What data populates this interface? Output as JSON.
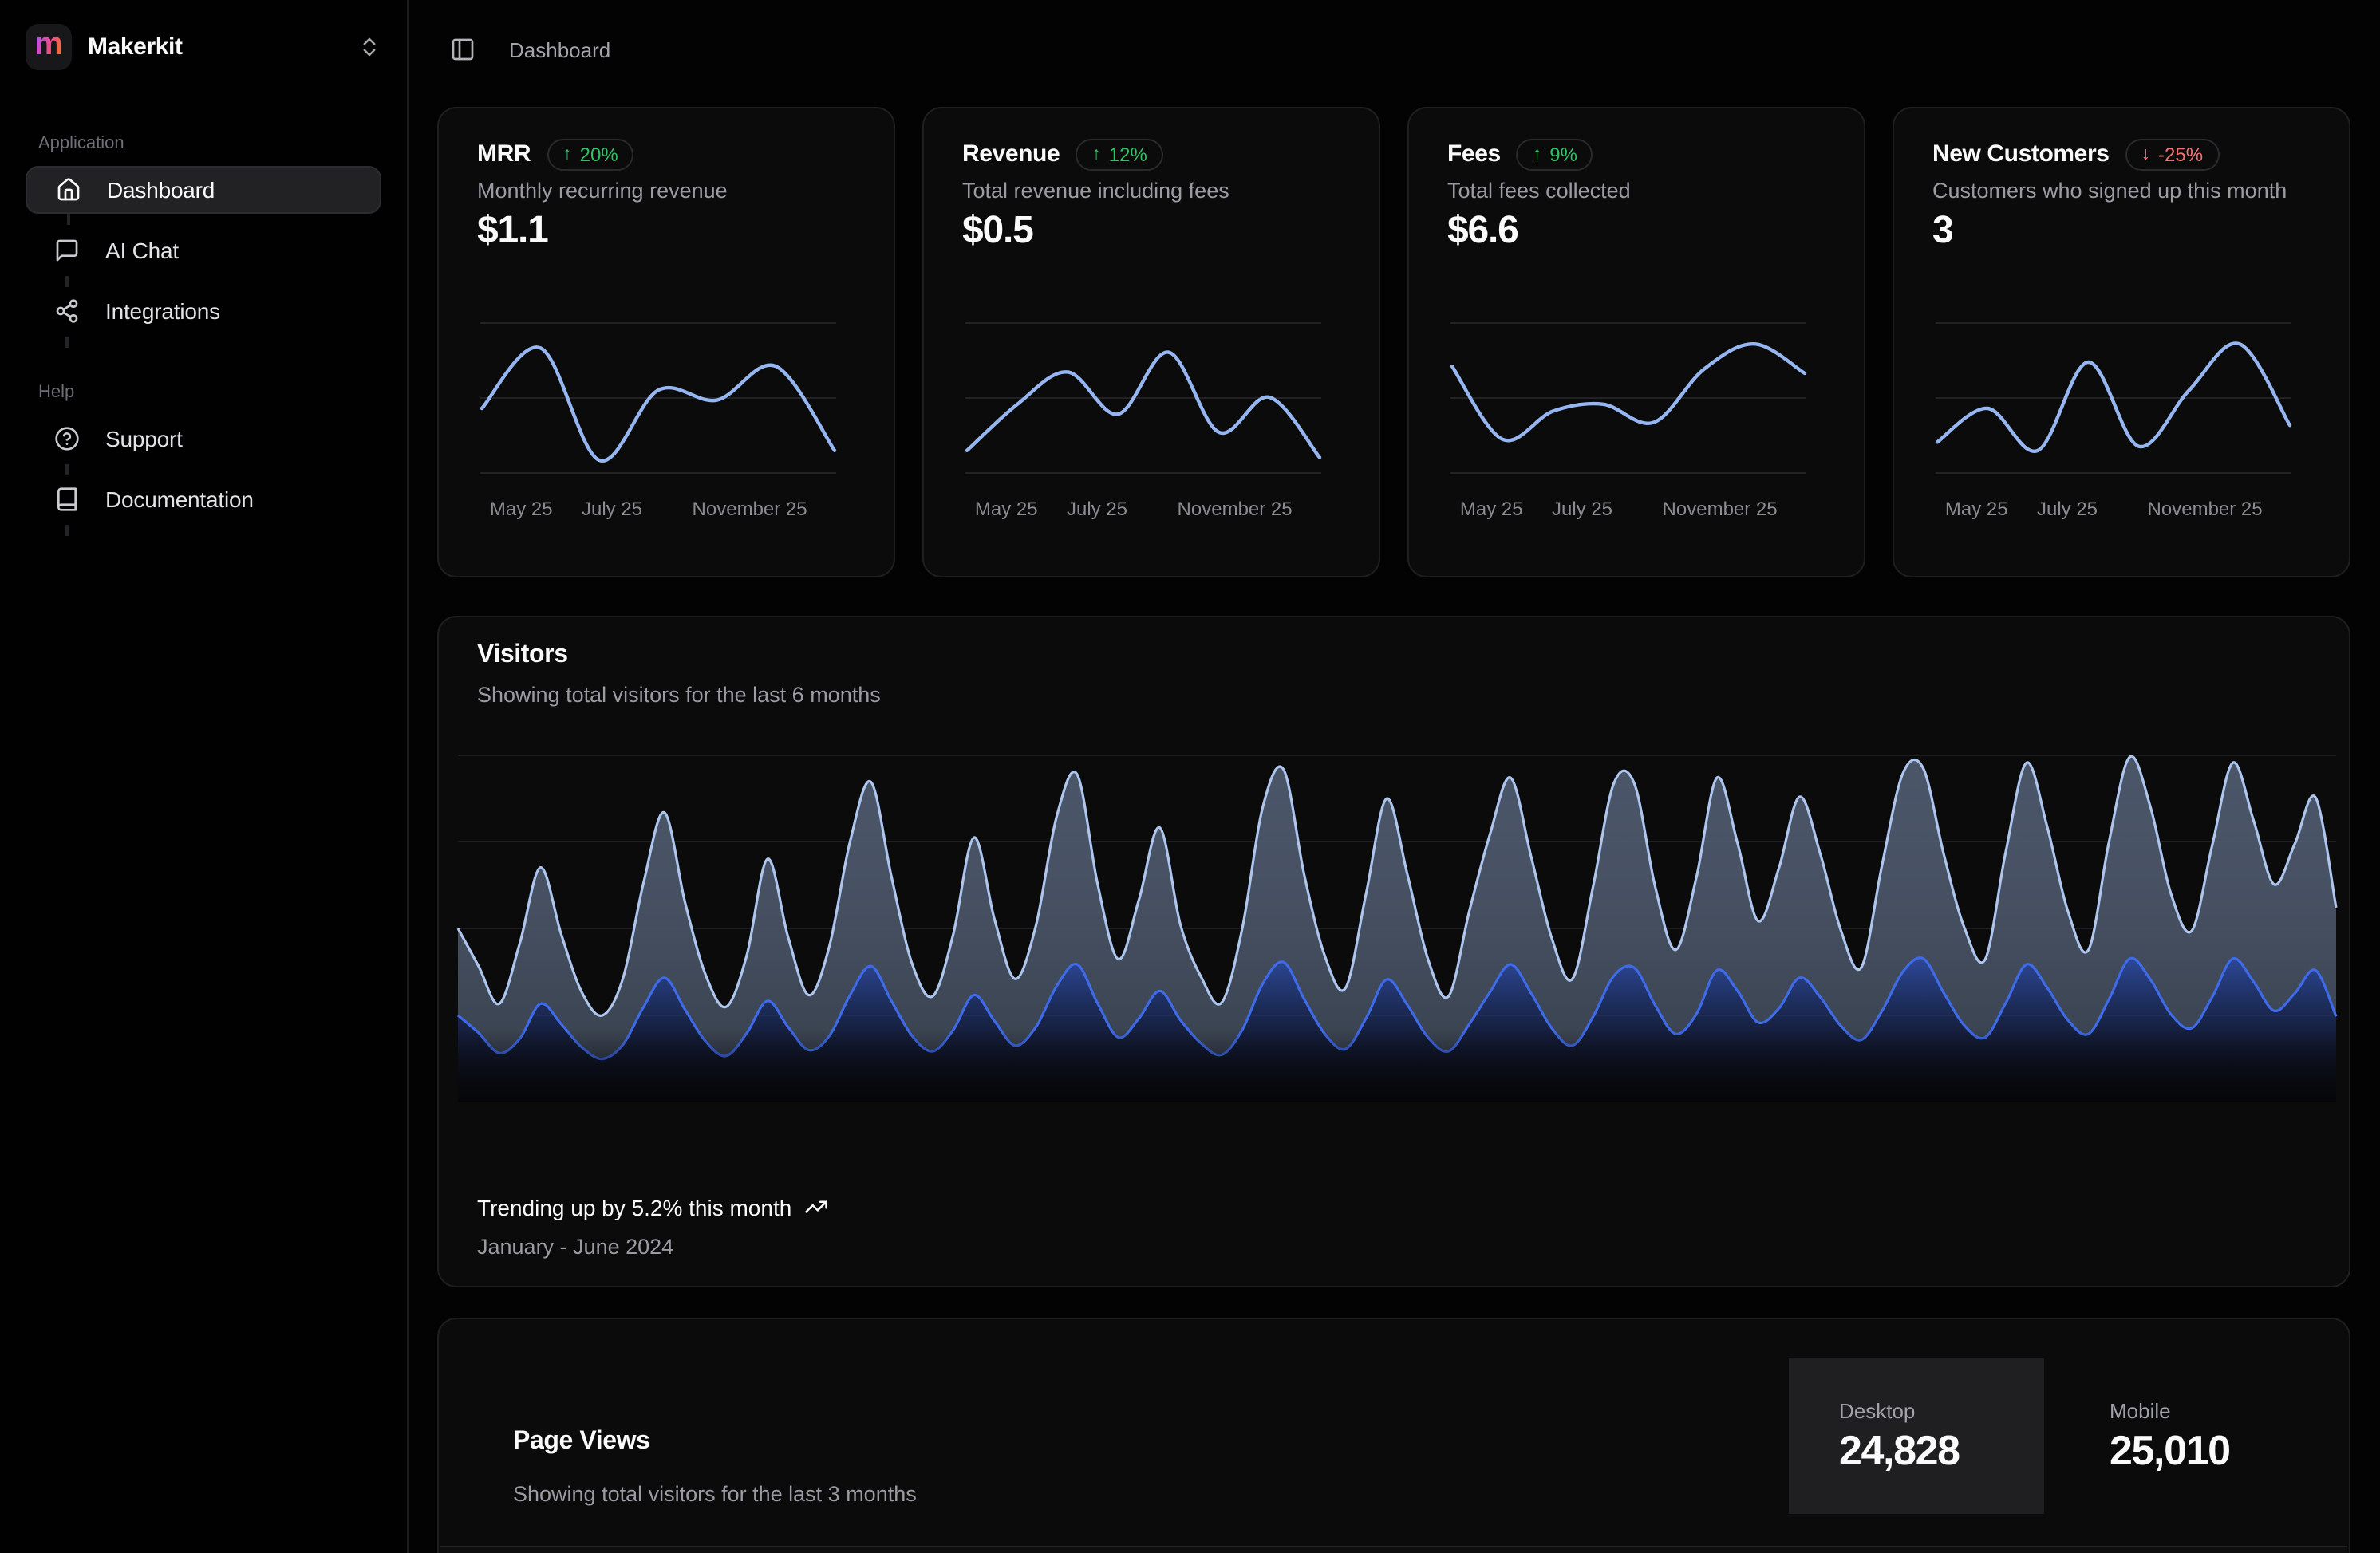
{
  "sidebar": {
    "brand": {
      "name": "Makerkit",
      "initial": "m"
    },
    "sections": [
      {
        "label": "Application",
        "items": [
          {
            "label": "Dashboard",
            "icon": "home-icon",
            "active": true
          },
          {
            "label": "AI Chat",
            "icon": "message-square-icon",
            "active": false
          },
          {
            "label": "Integrations",
            "icon": "share-icon",
            "active": false
          }
        ]
      },
      {
        "label": "Help",
        "items": [
          {
            "label": "Support",
            "icon": "help-circle-icon",
            "active": false
          },
          {
            "label": "Documentation",
            "icon": "book-icon",
            "active": false
          }
        ]
      }
    ]
  },
  "header": {
    "breadcrumb": "Dashboard"
  },
  "stat_cards": [
    {
      "title": "MRR",
      "badge": {
        "arrow": "↑",
        "label": "20%",
        "direction": "up"
      },
      "subtitle": "Monthly recurring revenue",
      "value": "$1.1",
      "labels": [
        "May 25",
        "July 25",
        "November 25"
      ],
      "sparkline": {
        "type": "line",
        "points": [
          0.58,
          0.15,
          0.95,
          0.45,
          0.52,
          0.28,
          0.88
        ]
      }
    },
    {
      "title": "Revenue",
      "badge": {
        "arrow": "↑",
        "label": "12%",
        "direction": "up"
      },
      "subtitle": "Total revenue including fees",
      "value": "$0.5",
      "labels": [
        "May 25",
        "July 25",
        "November 25"
      ],
      "sparkline": {
        "type": "line",
        "points": [
          0.88,
          0.55,
          0.32,
          0.62,
          0.18,
          0.75,
          0.5,
          0.93
        ]
      }
    },
    {
      "title": "Fees",
      "badge": {
        "arrow": "↑",
        "label": "9%",
        "direction": "up"
      },
      "subtitle": "Total fees collected",
      "value": "$6.6",
      "labels": [
        "May 25",
        "July 25",
        "November 25"
      ],
      "sparkline": {
        "type": "line",
        "points": [
          0.28,
          0.8,
          0.6,
          0.55,
          0.68,
          0.3,
          0.12,
          0.33
        ]
      }
    },
    {
      "title": "New Customers",
      "badge": {
        "arrow": "↓",
        "label": "-25%",
        "direction": "down"
      },
      "subtitle": "Customers who signed up this month",
      "value": "3",
      "labels": [
        "May 25",
        "July 25",
        "November 25"
      ],
      "sparkline": {
        "type": "line",
        "points": [
          0.82,
          0.58,
          0.88,
          0.25,
          0.85,
          0.45,
          0.12,
          0.7
        ]
      }
    }
  ],
  "visitors": {
    "title": "Visitors",
    "subtitle": "Showing total visitors for the last 6 months",
    "trend_text": "Trending up by 5.2% this month",
    "range_text": "January - June 2024",
    "chart_data": {
      "type": "area",
      "stacked": true,
      "legend": "off",
      "grid": "horizontal",
      "ymax": 600,
      "series_names": [
        "mobile",
        "desktop"
      ],
      "mobile": [
        150,
        120,
        85,
        110,
        170,
        135,
        95,
        75,
        100,
        165,
        215,
        160,
        105,
        80,
        120,
        175,
        130,
        90,
        115,
        185,
        235,
        175,
        115,
        88,
        125,
        185,
        140,
        98,
        130,
        200,
        238,
        170,
        112,
        145,
        192,
        142,
        102,
        82,
        125,
        205,
        242,
        178,
        118,
        92,
        145,
        212,
        168,
        112,
        88,
        135,
        190,
        238,
        188,
        128,
        98,
        148,
        218,
        232,
        168,
        118,
        152,
        228,
        192,
        138,
        162,
        215,
        182,
        132,
        108,
        158,
        225,
        248,
        188,
        132,
        112,
        172,
        238,
        198,
        142,
        118,
        178,
        248,
        212,
        152,
        128,
        182,
        248,
        208,
        158,
        188,
        228,
        148
      ],
      "desktop": [
        150,
        115,
        85,
        165,
        235,
        155,
        95,
        75,
        115,
        215,
        285,
        185,
        115,
        85,
        135,
        245,
        155,
        95,
        155,
        265,
        318,
        215,
        125,
        95,
        165,
        272,
        175,
        115,
        175,
        292,
        328,
        205,
        135,
        205,
        282,
        165,
        115,
        90,
        175,
        305,
        332,
        215,
        135,
        105,
        215,
        312,
        225,
        135,
        95,
        195,
        272,
        322,
        235,
        155,
        115,
        225,
        332,
        318,
        205,
        145,
        235,
        332,
        255,
        175,
        242,
        312,
        248,
        165,
        125,
        252,
        342,
        328,
        238,
        168,
        135,
        262,
        348,
        278,
        188,
        145,
        272,
        348,
        298,
        208,
        168,
        262,
        338,
        278,
        218,
        258,
        298,
        188
      ]
    }
  },
  "page_views": {
    "title": "Page Views",
    "subtitle": "Showing total visitors for the last 3 months",
    "stats": [
      {
        "label": "Desktop",
        "value": "24,828",
        "active": true
      },
      {
        "label": "Mobile",
        "value": "25,010",
        "active": false
      }
    ]
  },
  "colors": {
    "positive": "#2ec263",
    "negative": "#f47171",
    "sparkline": "#96b6f2",
    "visitors_desktop_line": "#aec6ee",
    "visitors_mobile_line": "#3f6ae8",
    "card_bg": "#0b0b0c",
    "card_border": "#1e1e21"
  }
}
